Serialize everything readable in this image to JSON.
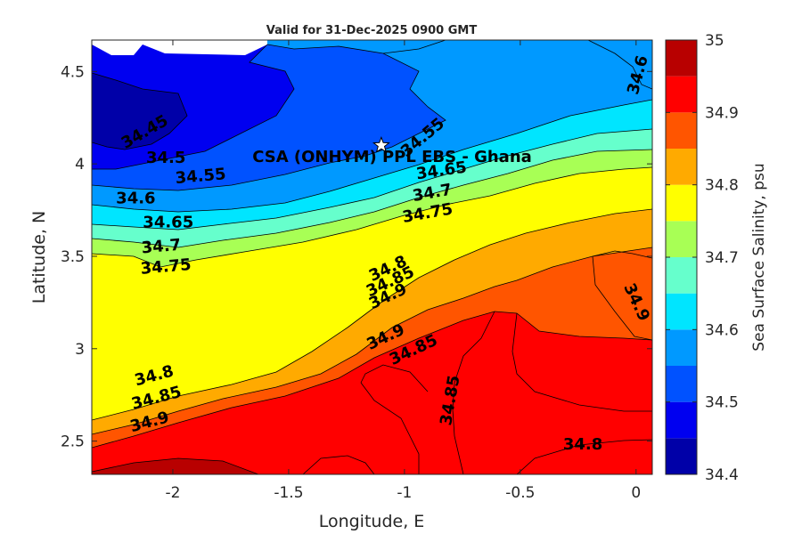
{
  "chart_data": {
    "type": "heatmap",
    "subtype": "filled-contour",
    "title": "Valid for 31-Dec-2025 0900 GMT",
    "xlabel": "Longitude, E",
    "ylabel": "Latitude, N",
    "xlim": [
      -2.35,
      0.07
    ],
    "ylim": [
      2.32,
      4.67
    ],
    "xticks": [
      -2,
      -1.5,
      -1,
      -0.5,
      0
    ],
    "xtick_labels": [
      "-2",
      "-1.5",
      "-1",
      "-0.5",
      "0"
    ],
    "yticks": [
      2.5,
      3,
      3.5,
      4,
      4.5
    ],
    "ytick_labels": [
      "2.5",
      "3",
      "3.5",
      "4",
      "4.5"
    ],
    "grid": false,
    "colorbar": {
      "label": "Sea Surface Salinity, psu",
      "ticks": [
        34.4,
        34.5,
        34.6,
        34.7,
        34.8,
        34.9,
        35
      ],
      "tick_labels": [
        "34.4",
        "34.5",
        "34.6",
        "34.7",
        "34.8",
        "34.9",
        "35"
      ],
      "levels": [
        34.4,
        34.45,
        34.5,
        34.55,
        34.6,
        34.65,
        34.7,
        34.75,
        34.8,
        34.85,
        34.9,
        34.95,
        35
      ],
      "colors": [
        "#0000a8",
        "#0000f0",
        "#0052ff",
        "#0099ff",
        "#00e5ff",
        "#66ffcc",
        "#a8ff55",
        "#ffff00",
        "#ffaa00",
        "#ff5500",
        "#ff0000",
        "#b80000"
      ]
    },
    "station": {
      "name": "CSA (ONHYM) PPL EBS - Ghana",
      "lon": -1.1,
      "lat": 4.1
    },
    "contour_labels": [
      {
        "text": "34.45",
        "lon": -2.12,
        "lat": 4.17,
        "angle": -30
      },
      {
        "text": "34.5",
        "lon": -2.03,
        "lat": 4.03,
        "angle": 0
      },
      {
        "text": "34.55",
        "lon": -1.88,
        "lat": 3.93,
        "angle": -5
      },
      {
        "text": "34.6",
        "lon": -2.16,
        "lat": 3.81,
        "angle": 0
      },
      {
        "text": "34.65",
        "lon": -2.02,
        "lat": 3.68,
        "angle": 0
      },
      {
        "text": "34.7",
        "lon": -2.05,
        "lat": 3.55,
        "angle": -5
      },
      {
        "text": "34.75",
        "lon": -2.03,
        "lat": 3.44,
        "angle": -5
      },
      {
        "text": "34.55",
        "lon": -0.92,
        "lat": 4.14,
        "angle": -40
      },
      {
        "text": "34.6",
        "lon": 0.01,
        "lat": 4.48,
        "angle": -75
      },
      {
        "text": "34.65",
        "lon": -0.84,
        "lat": 3.96,
        "angle": -8
      },
      {
        "text": "34.7",
        "lon": -0.88,
        "lat": 3.84,
        "angle": -10
      },
      {
        "text": "34.75",
        "lon": -0.9,
        "lat": 3.73,
        "angle": -10
      },
      {
        "text": "34.8",
        "lon": -1.07,
        "lat": 3.43,
        "angle": -25
      },
      {
        "text": "34.85",
        "lon": -1.06,
        "lat": 3.36,
        "angle": -25
      },
      {
        "text": "34.9",
        "lon": -1.07,
        "lat": 3.28,
        "angle": -25
      },
      {
        "text": "34.9",
        "lon": 0.0,
        "lat": 3.25,
        "angle": 65
      },
      {
        "text": "34.9",
        "lon": -1.08,
        "lat": 3.06,
        "angle": -25
      },
      {
        "text": "34.85",
        "lon": -0.96,
        "lat": 2.99,
        "angle": -25
      },
      {
        "text": "34.85",
        "lon": -0.8,
        "lat": 2.72,
        "angle": -80
      },
      {
        "text": "34.8",
        "lon": -2.08,
        "lat": 2.85,
        "angle": -15
      },
      {
        "text": "34.85",
        "lon": -2.07,
        "lat": 2.73,
        "angle": -15
      },
      {
        "text": "34.9",
        "lon": -2.1,
        "lat": 2.6,
        "angle": -15
      },
      {
        "text": "34.8",
        "lon": -0.23,
        "lat": 2.48,
        "angle": 0
      }
    ]
  },
  "colors": {
    "axes_text": "#262626",
    "contour_line": "#000000",
    "land": "#ffffff",
    "station_marker": "#ffffff"
  }
}
